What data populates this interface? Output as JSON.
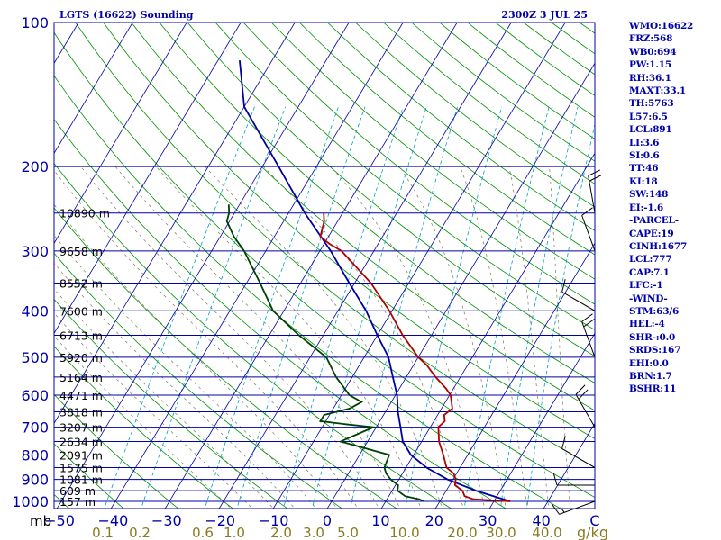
{
  "header": {
    "station": "LGTS (16622) Sounding",
    "time": "2300Z  3 JUL 25"
  },
  "indices": [
    "WMO:16622",
    "FRZ:568",
    "WB0:694",
    "PW:1.15",
    "RH:36.1",
    "MAXT:33.1",
    "TH:5763",
    "L57:6.5",
    "LCL:891",
    "LI:3.6",
    "SI:0.6",
    "TT:46",
    "KI:18",
    "SW:148",
    "EI:-1.6",
    "-PARCEL-",
    "CAPE:19",
    "CINH:1677",
    "LCL:777",
    "CAP:7.1",
    "LFC:-1",
    "-WIND-",
    "STM:63/6",
    "HEL:-4",
    "SHR-:0.0",
    "SRDS:167",
    "EHI:0.0",
    "BRN:1.7",
    "BSHR:11"
  ],
  "colors": {
    "frame": "#0000a8",
    "isobar": "#0000a8",
    "isotherm": "#0000a8",
    "dry_adiabat": "#009000",
    "moist_adiabat": "#7a7a5a",
    "mixing_ratio": "#00a0c0",
    "temperature": "#b00000",
    "dewpoint": "#004000",
    "virtual_temp": "#0000a0",
    "wind_barb": "#000000",
    "mixing_label": "#8a7a20"
  },
  "chart_data": {
    "type": "skew-t log-p",
    "ylabel": "mb",
    "xlabel": "°C",
    "pressure_ticks": [
      100,
      200,
      300,
      400,
      500,
      600,
      700,
      800,
      900,
      1000
    ],
    "temperature_ticks": [
      "−50",
      "−40",
      "−30",
      "−20",
      "−10",
      "0",
      "10",
      "20",
      "30",
      "40",
      "C"
    ],
    "mixing_ratio_unit": "g/kg",
    "mixing_ratio_ticks": [
      "0.1",
      "0.2",
      "0.6",
      "1.0",
      "2.0",
      "3.0",
      "5.0",
      "10.0",
      "20.0",
      "30.0",
      "40.0"
    ],
    "mixing_ratio_values": [
      0.1,
      0.2,
      0.6,
      1.0,
      2.0,
      3.0,
      5.0,
      10.0,
      20.0,
      30.0,
      40.0
    ],
    "height_labels": [
      {
        "p": 1000,
        "label": "157 m"
      },
      {
        "p": 950,
        "label": "609 m"
      },
      {
        "p": 900,
        "label": "1081 m"
      },
      {
        "p": 850,
        "label": "1575 m"
      },
      {
        "p": 800,
        "label": "2091 m"
      },
      {
        "p": 750,
        "label": "2634 m"
      },
      {
        "p": 700,
        "label": "3207 m"
      },
      {
        "p": 650,
        "label": "3818 m"
      },
      {
        "p": 600,
        "label": "4471 m"
      },
      {
        "p": 550,
        "label": "5164 m"
      },
      {
        "p": 500,
        "label": "5920 m"
      },
      {
        "p": 450,
        "label": "6713 m"
      },
      {
        "p": 400,
        "label": "7600 m"
      },
      {
        "p": 350,
        "label": "8552 m"
      },
      {
        "p": 300,
        "label": "9658 m"
      },
      {
        "p": 250,
        "label": "10890 m"
      }
    ],
    "temperature": [
      [
        1000,
        33
      ],
      [
        990,
        26
      ],
      [
        975,
        24
      ],
      [
        950,
        23
      ],
      [
        925,
        21
      ],
      [
        900,
        20.5
      ],
      [
        875,
        19.5
      ],
      [
        850,
        17.5
      ],
      [
        800,
        15.5
      ],
      [
        750,
        13.2
      ],
      [
        700,
        11.5
      ],
      [
        680,
        12
      ],
      [
        660,
        11.2
      ],
      [
        640,
        12
      ],
      [
        600,
        10.2
      ],
      [
        580,
        8.5
      ],
      [
        550,
        5.4
      ],
      [
        520,
        2.5
      ],
      [
        500,
        0
      ],
      [
        450,
        -5.3
      ],
      [
        400,
        -10.5
      ],
      [
        350,
        -17
      ],
      [
        300,
        -26
      ],
      [
        290,
        -29
      ],
      [
        280,
        -31.5
      ],
      [
        270,
        -32
      ],
      [
        260,
        -32.5
      ],
      [
        250,
        -33.5
      ]
    ],
    "dewpoint": [
      [
        1000,
        17
      ],
      [
        990,
        16
      ],
      [
        975,
        13
      ],
      [
        950,
        11
      ],
      [
        925,
        10.5
      ],
      [
        900,
        8.5
      ],
      [
        875,
        7
      ],
      [
        850,
        6
      ],
      [
        800,
        5.5
      ],
      [
        750,
        -5
      ],
      [
        700,
        -0.5
      ],
      [
        690,
        -6
      ],
      [
        680,
        -11
      ],
      [
        660,
        -11
      ],
      [
        640,
        -7
      ],
      [
        620,
        -5.5
      ],
      [
        600,
        -8.5
      ],
      [
        550,
        -13
      ],
      [
        500,
        -17
      ],
      [
        450,
        -24.5
      ],
      [
        400,
        -32
      ],
      [
        350,
        -37.5
      ],
      [
        300,
        -44
      ],
      [
        280,
        -47.5
      ],
      [
        260,
        -50.5
      ],
      [
        250,
        -51
      ],
      [
        240,
        -52
      ]
    ],
    "virtual_temperature": [
      [
        1000,
        33
      ],
      [
        950,
        25.5
      ],
      [
        900,
        19
      ],
      [
        850,
        13.8
      ],
      [
        800,
        9.5
      ],
      [
        750,
        6.5
      ],
      [
        700,
        4.5
      ],
      [
        650,
        2.3
      ],
      [
        600,
        0.3
      ],
      [
        550,
        -2.5
      ],
      [
        500,
        -5.5
      ],
      [
        450,
        -10
      ],
      [
        400,
        -14.8
      ],
      [
        350,
        -21
      ],
      [
        300,
        -28
      ],
      [
        250,
        -37
      ],
      [
        200,
        -47
      ],
      [
        150,
        -60
      ],
      [
        120,
        -66
      ]
    ],
    "wind_barbs": [
      {
        "p": 1000,
        "dir": 250,
        "spd": 15
      },
      {
        "p": 925,
        "dir": 270,
        "spd": 10
      },
      {
        "p": 850,
        "dir": 300,
        "spd": 10
      },
      {
        "p": 700,
        "dir": 330,
        "spd": 20
      },
      {
        "p": 500,
        "dir": 340,
        "spd": 20
      },
      {
        "p": 400,
        "dir": 300,
        "spd": 10
      },
      {
        "p": 300,
        "dir": 340,
        "spd": 10
      },
      {
        "p": 250,
        "dir": 350,
        "spd": 20
      }
    ]
  }
}
